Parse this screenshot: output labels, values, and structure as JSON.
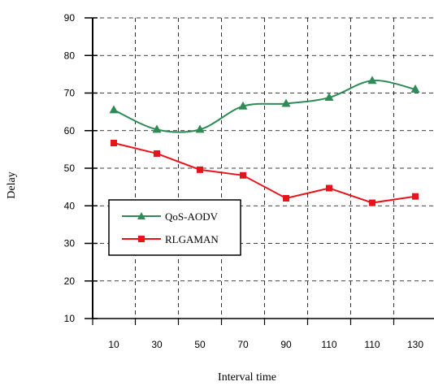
{
  "chart_data": {
    "type": "line",
    "title": "",
    "xlabel": "Interval time",
    "ylabel": "Delay",
    "categories": [
      "10",
      "30",
      "50",
      "70",
      "90",
      "110",
      "110",
      "130"
    ],
    "ylim": [
      10,
      90
    ],
    "yticks": [
      10,
      20,
      30,
      40,
      50,
      60,
      70,
      80,
      90
    ],
    "grid": "dashed",
    "legend_position": "lower-left",
    "series": [
      {
        "name": "QoS-AODV",
        "color": "#2e8b57",
        "marker": "triangle",
        "smooth": true,
        "values": [
          65.5,
          60.3,
          60.3,
          66.5,
          67.2,
          68.8,
          73.3,
          71.0
        ]
      },
      {
        "name": "RLGAMAN",
        "color": "#e8141b",
        "marker": "square",
        "smooth": false,
        "values": [
          56.7,
          53.9,
          49.6,
          48.1,
          42.0,
          44.7,
          40.8,
          42.5
        ]
      }
    ]
  }
}
